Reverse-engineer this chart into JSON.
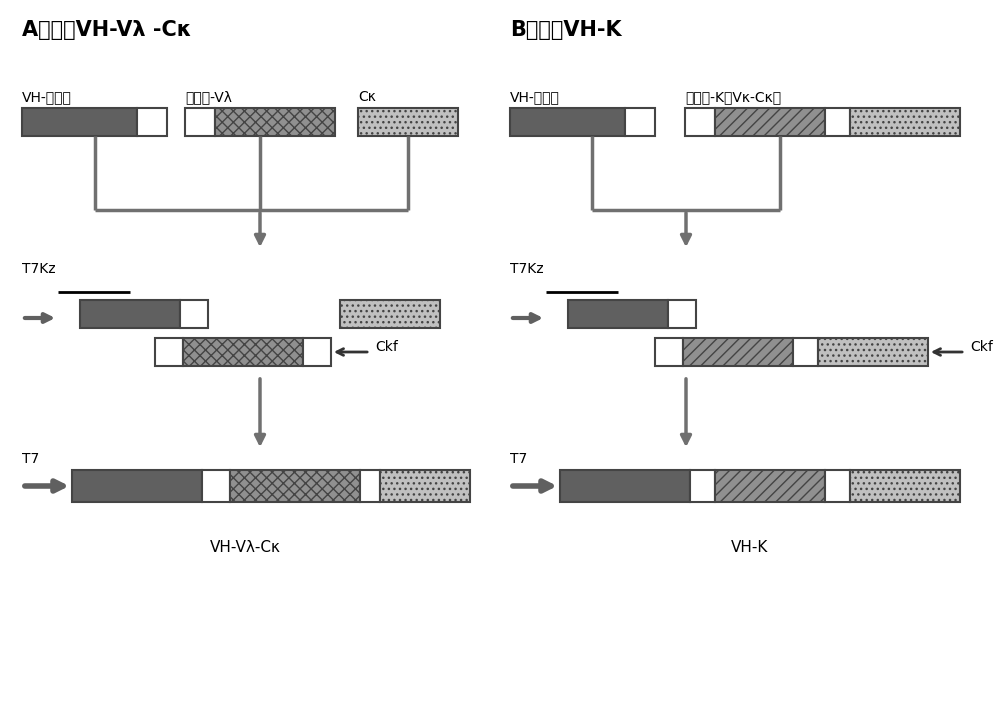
{
  "title_A_normal": "A） 构建VH-Vλ -Cκ",
  "title_B_normal": "B） 构建VH-K",
  "label_A_1": "VH-连接肽",
  "label_A_2": "连接肽-Vλ",
  "label_A_3": "Cκ",
  "label_B_1": "VH-连接肽",
  "label_B_2": "连接肽-K（Vκ-Cκ）",
  "label_A_bottom": "VH-Vλ-Cκ",
  "label_B_bottom": "VH-K",
  "T7Kz": "T7Kz",
  "T7": "T7",
  "Ckf": "Ckf",
  "dark_gray": "#606060",
  "med_gray": "#909090",
  "light_gray": "#c0c0c0",
  "white": "#ffffff",
  "bg": "#ffffff",
  "line_color": "#707070"
}
